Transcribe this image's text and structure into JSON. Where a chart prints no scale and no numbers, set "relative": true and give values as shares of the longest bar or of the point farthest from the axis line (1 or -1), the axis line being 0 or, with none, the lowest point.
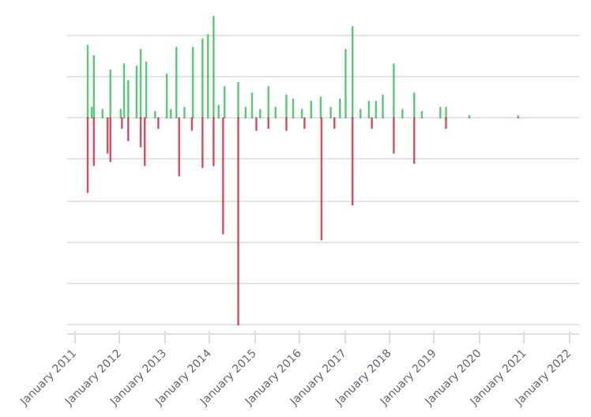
{
  "chart_data": {
    "type": "bar",
    "relative": true,
    "grid": "y",
    "xlim": [
      "2010-11-01",
      "2022-03-20"
    ],
    "xticks": [
      {
        "value": "2011-01-01",
        "label": "January 2011"
      },
      {
        "value": "2012-01-01",
        "label": "January 2012"
      },
      {
        "value": "2013-01-01",
        "label": "January 2013"
      },
      {
        "value": "2014-01-01",
        "label": "January 2014"
      },
      {
        "value": "2015-01-01",
        "label": "January 2015"
      },
      {
        "value": "2016-01-01",
        "label": "January 2016"
      },
      {
        "value": "2017-01-01",
        "label": "January 2017"
      },
      {
        "value": "2018-01-01",
        "label": "January 2018"
      },
      {
        "value": "2019-01-01",
        "label": "January 2019"
      },
      {
        "value": "2020-01-01",
        "label": "January 2020"
      },
      {
        "value": "2021-01-01",
        "label": "January 2021"
      },
      {
        "value": "2022-01-01",
        "label": "January 2022"
      }
    ],
    "series": [
      {
        "color": "#3cbf5e",
        "x": [
          "2011-04-17",
          "2011-05-20",
          "2011-06-06",
          "2011-08-15",
          "2011-10-18",
          "2012-01-10",
          "2012-02-06",
          "2012-03-11",
          "2012-05-18",
          "2012-06-20",
          "2012-08-04",
          "2012-10-15",
          "2013-01-18",
          "2013-02-20",
          "2013-04-06",
          "2013-06-10",
          "2013-08-18",
          "2013-11-04",
          "2013-12-18",
          "2014-02-02",
          "2014-03-15",
          "2014-05-02",
          "2014-08-21",
          "2014-10-20",
          "2014-12-11",
          "2015-02-15",
          "2015-04-23",
          "2015-06-20",
          "2015-09-16",
          "2015-11-10",
          "2016-01-20",
          "2016-04-04",
          "2016-06-21",
          "2016-09-10",
          "2016-11-24",
          "2017-01-09",
          "2017-03-06",
          "2017-05-10",
          "2017-07-17",
          "2017-09-12",
          "2017-11-07",
          "2018-02-04",
          "2018-04-15",
          "2018-07-20",
          "2018-09-20",
          "2019-02-17",
          "2019-04-04",
          "2019-10-10",
          "2020-11-10"
        ],
        "values": [
          0.35,
          0.05,
          0.3,
          0.04,
          0.23,
          0.04,
          0.26,
          0.18,
          0.25,
          0.33,
          0.27,
          0.03,
          0.21,
          0.04,
          0.34,
          0.05,
          0.34,
          0.38,
          0.4,
          0.49,
          0.06,
          0.15,
          0.17,
          0.05,
          0.12,
          0.04,
          0.15,
          0.05,
          0.11,
          0.09,
          0.04,
          0.08,
          0.1,
          0.05,
          0.09,
          0.33,
          0.44,
          0.04,
          0.08,
          0.08,
          0.11,
          0.26,
          0.04,
          0.12,
          0.03,
          0.05,
          0.05,
          0.01,
          0.01
        ]
      },
      {
        "color": "#d42c44",
        "x": [
          "2011-04-17",
          "2011-06-06",
          "2011-09-25",
          "2011-10-18",
          "2012-01-20",
          "2012-03-11",
          "2012-06-20",
          "2012-07-23",
          "2012-11-10",
          "2013-04-28",
          "2013-08-10",
          "2013-11-04",
          "2014-02-02",
          "2014-04-20",
          "2014-08-21",
          "2015-01-15",
          "2015-04-23",
          "2015-09-16",
          "2016-02-10",
          "2016-06-27",
          "2016-10-10",
          "2017-03-06",
          "2017-08-10",
          "2018-02-04",
          "2018-07-20",
          "2019-04-04"
        ],
        "values": [
          -0.36,
          -0.23,
          -0.17,
          -0.21,
          -0.05,
          -0.11,
          -0.14,
          -0.23,
          -0.05,
          -0.28,
          -0.06,
          -0.24,
          -0.23,
          -0.56,
          -1,
          -0.06,
          -0.05,
          -0.06,
          -0.05,
          -0.59,
          -0.05,
          -0.42,
          -0.05,
          -0.17,
          -0.22,
          -0.05
        ]
      }
    ]
  }
}
